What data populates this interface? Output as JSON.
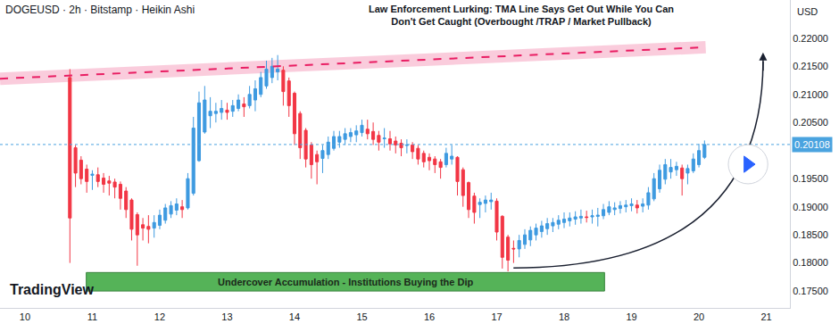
{
  "chart_data": {
    "type": "candlestick",
    "title": "Law Enforcement Lurking: TMA Line Says Get Out While You Can\nDon't Get Caught (Overbought /TRAP / Market Pullback)",
    "subtitle": "DOGEUSD · 2h · Bitstamp · Heikin Ashi",
    "ylabel": "USD",
    "watermark": "TradingView",
    "x": [
      10.667,
      10.75,
      10.833,
      10.917,
      11,
      11.083,
      11.167,
      11.25,
      11.333,
      11.417,
      11.5,
      11.583,
      11.667,
      11.75,
      11.833,
      11.917,
      12,
      12.083,
      12.167,
      12.25,
      12.333,
      12.417,
      12.5,
      12.583,
      12.667,
      12.75,
      12.833,
      12.917,
      13,
      13.083,
      13.167,
      13.25,
      13.333,
      13.417,
      13.5,
      13.583,
      13.667,
      13.75,
      13.833,
      13.917,
      14,
      14.083,
      14.167,
      14.25,
      14.333,
      14.417,
      14.5,
      14.583,
      14.667,
      14.75,
      14.833,
      14.917,
      15,
      15.083,
      15.167,
      15.25,
      15.333,
      15.417,
      15.5,
      15.583,
      15.667,
      15.75,
      15.833,
      15.917,
      16,
      16.083,
      16.167,
      16.25,
      16.333,
      16.417,
      16.5,
      16.583,
      16.667,
      16.75,
      16.833,
      16.917,
      17,
      17.083,
      17.167,
      17.25,
      17.333,
      17.417,
      17.5,
      17.583,
      17.667,
      17.75,
      17.833,
      17.917,
      18,
      18.083,
      18.167,
      18.25,
      18.333,
      18.417,
      18.5,
      18.583,
      18.667,
      18.75,
      18.833,
      18.917,
      19,
      19.083,
      19.167,
      19.25,
      19.333,
      19.417,
      19.5,
      19.583,
      19.667,
      19.75,
      19.833,
      19.917,
      20,
      20.083
    ],
    "open": [
      0.213,
      0.2005,
      0.1983,
      0.1967,
      0.1956,
      0.1957,
      0.1951,
      0.1946,
      0.1944,
      0.194,
      0.1928,
      0.1912,
      0.1886,
      0.1868,
      0.1865,
      0.1862,
      0.1867,
      0.1876,
      0.1887,
      0.1894,
      0.19,
      0.1898,
      0.1924,
      0.1982,
      0.2033,
      0.2062,
      0.2066,
      0.2068,
      0.2072,
      0.207,
      0.2075,
      0.2083,
      0.208,
      0.209,
      0.21,
      0.2115,
      0.213,
      0.214,
      0.2143,
      0.2124,
      0.2102,
      0.2066,
      0.2036,
      0.201,
      0.1993,
      0.1986,
      0.1993,
      0.2004,
      0.2015,
      0.202,
      0.2025,
      0.2028,
      0.2032,
      0.2038,
      0.2034,
      0.2027,
      0.2021,
      0.2021,
      0.2017,
      0.2013,
      0.2009,
      0.201,
      0.2004,
      0.1995,
      0.1988,
      0.1985,
      0.198,
      0.1975,
      0.1985,
      0.1988,
      0.1966,
      0.1943,
      0.1919,
      0.1904,
      0.1906,
      0.1909,
      0.191,
      0.1883,
      0.1846,
      0.1826,
      0.1825,
      0.1833,
      0.1841,
      0.185,
      0.1856,
      0.1861,
      0.1866,
      0.1869,
      0.1872,
      0.1875,
      0.1878,
      0.188,
      0.1882,
      0.1882,
      0.1883,
      0.1884,
      0.189,
      0.1895,
      0.1897,
      0.19,
      0.1902,
      0.1903,
      0.1901,
      0.1903,
      0.1914,
      0.1932,
      0.1949,
      0.1962,
      0.1966,
      0.1969,
      0.196,
      0.1964,
      0.1975,
      0.1988
    ],
    "high": [
      0.2145,
      0.201,
      0.199,
      0.1975,
      0.1965,
      0.197,
      0.196,
      0.1955,
      0.195,
      0.1945,
      0.1935,
      0.1915,
      0.189,
      0.188,
      0.1885,
      0.1885,
      0.1895,
      0.1905,
      0.191,
      0.1915,
      0.1912,
      0.196,
      0.206,
      0.2105,
      0.2115,
      0.2095,
      0.2085,
      0.209,
      0.2085,
      0.209,
      0.21,
      0.2095,
      0.2115,
      0.2125,
      0.214,
      0.216,
      0.2165,
      0.217,
      0.215,
      0.213,
      0.2105,
      0.207,
      0.204,
      0.2015,
      0.2,
      0.201,
      0.2025,
      0.2035,
      0.2035,
      0.204,
      0.204,
      0.2045,
      0.2055,
      0.2055,
      0.205,
      0.2035,
      0.204,
      0.2035,
      0.2025,
      0.202,
      0.202,
      0.2015,
      0.201,
      0.2,
      0.1995,
      0.199,
      0.1985,
      0.2005,
      0.201,
      0.199,
      0.197,
      0.1945,
      0.1925,
      0.1915,
      0.192,
      0.1925,
      0.1915,
      0.1885,
      0.185,
      0.184,
      0.185,
      0.186,
      0.1865,
      0.187,
      0.1875,
      0.188,
      0.188,
      0.1885,
      0.189,
      0.189,
      0.1892,
      0.1895,
      0.1893,
      0.1895,
      0.1898,
      0.1905,
      0.191,
      0.1908,
      0.191,
      0.1912,
      0.1915,
      0.1912,
      0.1915,
      0.1935,
      0.196,
      0.1975,
      0.1985,
      0.1985,
      0.198,
      0.1975,
      0.1975,
      0.1995,
      0.2012,
      0.2018
    ],
    "low": [
      0.18,
      0.1935,
      0.194,
      0.1925,
      0.193,
      0.1935,
      0.1925,
      0.192,
      0.1915,
      0.1895,
      0.188,
      0.184,
      0.1795,
      0.184,
      0.1835,
      0.1845,
      0.186,
      0.187,
      0.188,
      0.1885,
      0.188,
      0.1895,
      0.192,
      0.198,
      0.203,
      0.204,
      0.205,
      0.2055,
      0.2055,
      0.206,
      0.207,
      0.206,
      0.2075,
      0.207,
      0.2095,
      0.211,
      0.212,
      0.2125,
      0.208,
      0.206,
      0.201,
      0.1985,
      0.197,
      0.195,
      0.194,
      0.196,
      0.1985,
      0.2,
      0.2005,
      0.201,
      0.2015,
      0.2015,
      0.2025,
      0.202,
      0.201,
      0.2,
      0.2005,
      0.2,
      0.1995,
      0.199,
      0.1995,
      0.1985,
      0.1975,
      0.197,
      0.1965,
      0.196,
      0.195,
      0.197,
      0.1975,
      0.192,
      0.19,
      0.188,
      0.187,
      0.188,
      0.189,
      0.1895,
      0.184,
      0.179,
      0.1785,
      0.18,
      0.181,
      0.1825,
      0.183,
      0.184,
      0.1845,
      0.185,
      0.1855,
      0.186,
      0.1862,
      0.1865,
      0.1868,
      0.187,
      0.1872,
      0.187,
      0.1865,
      0.1878,
      0.1885,
      0.1885,
      0.1888,
      0.189,
      0.1892,
      0.1888,
      0.189,
      0.1895,
      0.191,
      0.1925,
      0.194,
      0.195,
      0.1955,
      0.192,
      0.194,
      0.196,
      0.197,
      0.1985
    ],
    "close": [
      0.188,
      0.196,
      0.195,
      0.1945,
      0.1958,
      0.1945,
      0.194,
      0.1942,
      0.1935,
      0.1915,
      0.1895,
      0.186,
      0.185,
      0.1862,
      0.186,
      0.1872,
      0.1885,
      0.1898,
      0.1902,
      0.1905,
      0.1895,
      0.195,
      0.204,
      0.2085,
      0.209,
      0.207,
      0.207,
      0.2075,
      0.2068,
      0.208,
      0.209,
      0.2078,
      0.21,
      0.211,
      0.213,
      0.2145,
      0.215,
      0.2145,
      0.2105,
      0.208,
      0.203,
      0.2005,
      0.1985,
      0.1975,
      0.198,
      0.2,
      0.2015,
      0.2025,
      0.2025,
      0.203,
      0.2032,
      0.2035,
      0.2045,
      0.203,
      0.202,
      0.2015,
      0.2022,
      0.2012,
      0.201,
      0.2005,
      0.201,
      0.1998,
      0.1985,
      0.198,
      0.1982,
      0.1975,
      0.197,
      0.1995,
      0.199,
      0.1945,
      0.192,
      0.1895,
      0.189,
      0.1908,
      0.1912,
      0.1912,
      0.1855,
      0.181,
      0.1805,
      0.1825,
      0.184,
      0.185,
      0.1858,
      0.1862,
      0.1866,
      0.187,
      0.1872,
      0.1876,
      0.1878,
      0.188,
      0.1882,
      0.1883,
      0.1881,
      0.1884,
      0.1885,
      0.1895,
      0.19,
      0.1898,
      0.1902,
      0.1903,
      0.1905,
      0.1898,
      0.1905,
      0.1925,
      0.195,
      0.1965,
      0.1975,
      0.197,
      0.1972,
      0.195,
      0.1968,
      0.1985,
      0.2,
      0.20108
    ],
    "color": {
      "increasing": "#3e9ae0",
      "decreasing": "#f23645"
    },
    "last_price": {
      "value": 0.20108,
      "label": "0.20108",
      "color": "#4aa3df"
    },
    "resistance": {
      "x": [
        9.63,
        20.1
      ],
      "y": [
        0.2128,
        0.2184
      ],
      "color": "#e91e63"
    },
    "zones": [
      {
        "text": "Undercover Accumulation - Institutions Buying the Dip",
        "x": [
          10.91,
          18.6
        ],
        "y": [
          0.175,
          0.1783
        ],
        "color": "#4caf50"
      }
    ],
    "xlim": [
      9.63,
      21.35
    ],
    "xticks": [
      10,
      11,
      12,
      13,
      14,
      15,
      16,
      17,
      18,
      19,
      20,
      21
    ],
    "ylim": [
      0.172,
      0.2268
    ],
    "yticks": [
      {
        "value": 0.175,
        "label": "0.17500"
      },
      {
        "value": 0.18,
        "label": "0.18000"
      },
      {
        "value": 0.185,
        "label": "0.18500"
      },
      {
        "value": 0.19,
        "label": "0.19000"
      },
      {
        "value": 0.195,
        "label": "0.19500"
      },
      {
        "value": 0.205,
        "label": "0.20500"
      },
      {
        "value": 0.21,
        "label": "0.21000"
      },
      {
        "value": 0.215,
        "label": "0.21500"
      },
      {
        "value": 0.22,
        "label": "0.22000"
      }
    ],
    "grid": false
  }
}
